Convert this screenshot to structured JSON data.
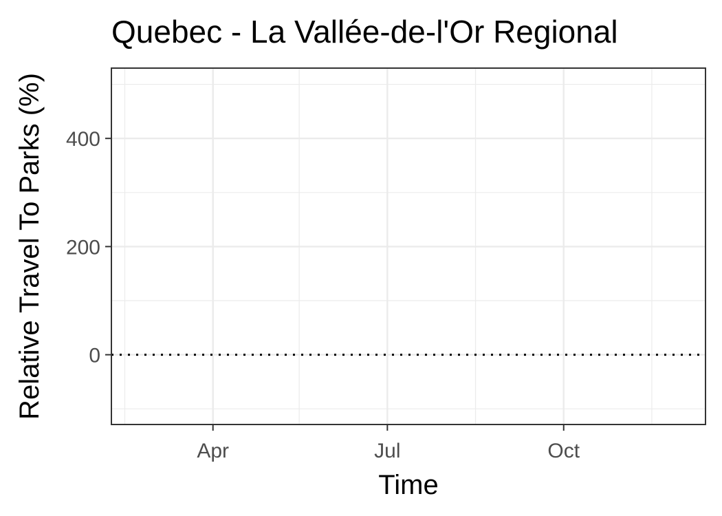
{
  "chart_data": {
    "type": "line",
    "title": "Quebec - La Vallée-de-l'Or Regional",
    "xlabel": "Time",
    "ylabel": "Relative Travel To Parks (%)",
    "x_ticks": [
      {
        "label": "Apr",
        "date": "2020-04-01"
      },
      {
        "label": "Jul",
        "date": "2020-07-01"
      },
      {
        "label": "Oct",
        "date": "2020-10-01"
      }
    ],
    "x_minor_dates": [
      "2020-02-15",
      "2020-05-16",
      "2020-08-16",
      "2020-11-16"
    ],
    "xlim": [
      "2020-02-08",
      "2020-12-14"
    ],
    "y_ticks": [
      0,
      200,
      400
    ],
    "y_minor": [
      -100,
      100,
      300,
      500
    ],
    "ylim": [
      -129,
      530
    ],
    "reference_line": {
      "y": 0,
      "style": "dotted"
    },
    "series": [],
    "grid": true,
    "colors": {
      "grid": "#ebebeb",
      "frame": "#333333",
      "tick_text": "#4d4d4d",
      "reference": "#000000"
    }
  }
}
